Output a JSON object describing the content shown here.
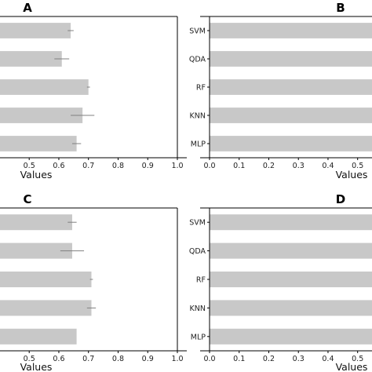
{
  "chart_data": [
    {
      "panel": "A",
      "type": "bar",
      "orientation": "horizontal",
      "categories": [
        "SVM",
        "QDA",
        "RF",
        "KNN",
        "MLP"
      ],
      "show_category_labels": false,
      "values": [
        0.64,
        0.61,
        0.7,
        0.68,
        0.66
      ],
      "errors": [
        0.01,
        0.025,
        0.005,
        0.04,
        0.015
      ],
      "xlabel": "Values",
      "xlim": [
        0.375,
        1.0
      ],
      "xticks": [
        "0.4",
        "0.5",
        "0.6",
        "0.7",
        "0.8",
        "0.9",
        "1.0"
      ],
      "bar_color": "#c8c8c8",
      "error_color": "#808080"
    },
    {
      "panel": "B",
      "type": "bar",
      "orientation": "horizontal",
      "categories": [
        "SVM",
        "QDA",
        "RF",
        "KNN",
        "MLP"
      ],
      "show_category_labels": true,
      "values": [
        0.58,
        0.58,
        0.58,
        0.58,
        0.58
      ],
      "xlabel": "Values",
      "xlim": [
        0.0,
        0.575
      ],
      "xticks": [
        "0.0",
        "0.1",
        "0.2",
        "0.3",
        "0.4",
        "0.5"
      ],
      "bar_color": "#c8c8c8"
    },
    {
      "panel": "C",
      "type": "bar",
      "orientation": "horizontal",
      "categories": [
        "SVM",
        "QDA",
        "RF",
        "KNN",
        "MLP"
      ],
      "show_category_labels": false,
      "values": [
        0.645,
        0.645,
        0.71,
        0.71,
        0.66
      ],
      "errors": [
        0.015,
        0.04,
        0.005,
        0.015,
        0.0
      ],
      "xlabel": "Values",
      "xlim": [
        0.375,
        1.0
      ],
      "xticks": [
        "0.4",
        "0.5",
        "0.6",
        "0.7",
        "0.8",
        "0.9",
        "1.0"
      ],
      "bar_color": "#c8c8c8",
      "error_color": "#808080"
    },
    {
      "panel": "D",
      "type": "bar",
      "orientation": "horizontal",
      "categories": [
        "SVM",
        "QDA",
        "RF",
        "KNN",
        "MLP"
      ],
      "show_category_labels": true,
      "values": [
        0.58,
        0.58,
        0.58,
        0.58,
        0.58
      ],
      "xlabel": "Values",
      "xlim": [
        0.0,
        0.575
      ],
      "xticks": [
        "0.0",
        "0.1",
        "0.2",
        "0.3",
        "0.4",
        "0.5"
      ],
      "bar_color": "#c8c8c8"
    }
  ]
}
